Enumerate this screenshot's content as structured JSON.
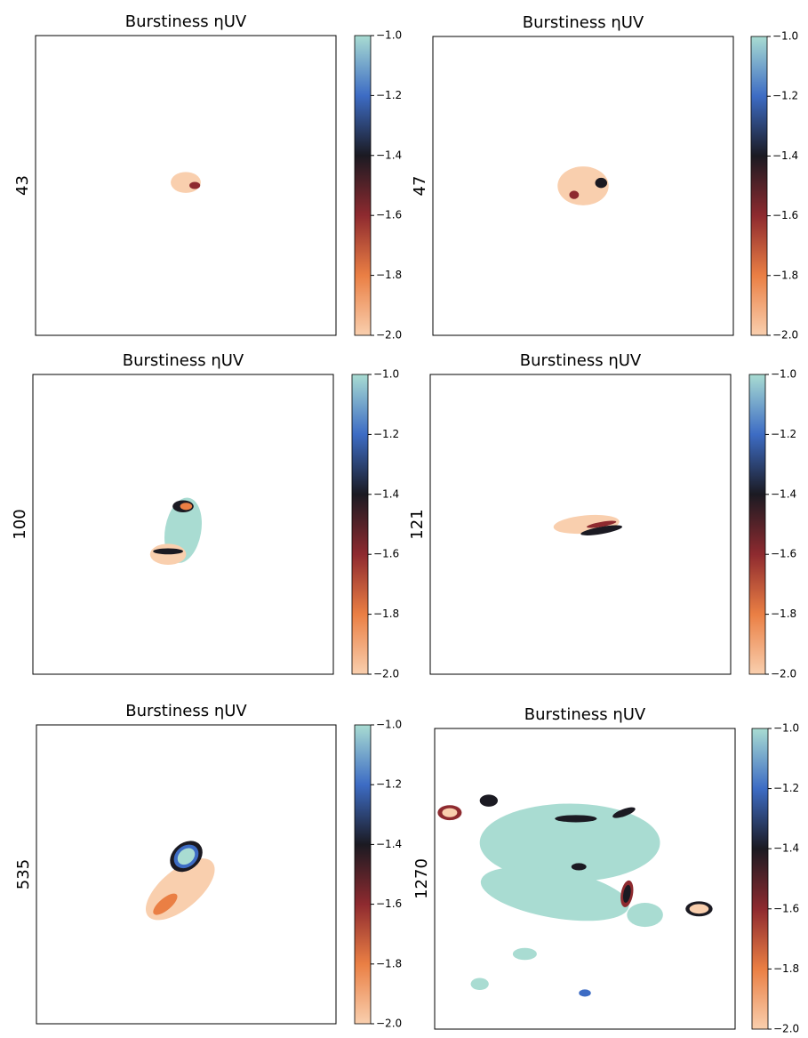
{
  "chart_data": [
    {
      "type": "heatmap",
      "title": "Burstiness ηUV",
      "ylabel": "43",
      "clim": [
        -2.0,
        -1.0
      ],
      "cticks": [
        {
          "value": -1.0,
          "label": "−1.0"
        },
        {
          "value": -1.2,
          "label": "−1.2"
        },
        {
          "value": -1.4,
          "label": "−1.4"
        },
        {
          "value": -1.6,
          "label": "−1.6"
        },
        {
          "value": -1.8,
          "label": "−1.8"
        },
        {
          "value": -2.0,
          "label": "−2.0"
        }
      ],
      "colormap": [
        "#f9cfae",
        "#ea7f44",
        "#8e2a2f",
        "#1b1a22",
        "#3d6cc4",
        "#a9dcd2"
      ]
    },
    {
      "type": "heatmap",
      "title": "Burstiness ηUV",
      "ylabel": "47",
      "clim": [
        -2.0,
        -1.0
      ],
      "cticks": [
        {
          "value": -1.0,
          "label": "−1.0"
        },
        {
          "value": -1.2,
          "label": "−1.2"
        },
        {
          "value": -1.4,
          "label": "−1.4"
        },
        {
          "value": -1.6,
          "label": "−1.6"
        },
        {
          "value": -1.8,
          "label": "−1.8"
        },
        {
          "value": -2.0,
          "label": "−2.0"
        }
      ],
      "colormap": [
        "#f9cfae",
        "#ea7f44",
        "#8e2a2f",
        "#1b1a22",
        "#3d6cc4",
        "#a9dcd2"
      ]
    },
    {
      "type": "heatmap",
      "title": "Burstiness ηUV",
      "ylabel": "100",
      "clim": [
        -2.0,
        -1.0
      ],
      "cticks": [
        {
          "value": -1.0,
          "label": "−1.0"
        },
        {
          "value": -1.2,
          "label": "−1.2"
        },
        {
          "value": -1.4,
          "label": "−1.4"
        },
        {
          "value": -1.6,
          "label": "−1.6"
        },
        {
          "value": -1.8,
          "label": "−1.8"
        },
        {
          "value": -2.0,
          "label": "−2.0"
        }
      ],
      "colormap": [
        "#f9cfae",
        "#ea7f44",
        "#8e2a2f",
        "#1b1a22",
        "#3d6cc4",
        "#a9dcd2"
      ]
    },
    {
      "type": "heatmap",
      "title": "Burstiness ηUV",
      "ylabel": "121",
      "clim": [
        -2.0,
        -1.0
      ],
      "cticks": [
        {
          "value": -1.0,
          "label": "−1.0"
        },
        {
          "value": -1.2,
          "label": "−1.2"
        },
        {
          "value": -1.4,
          "label": "−1.4"
        },
        {
          "value": -1.6,
          "label": "−1.6"
        },
        {
          "value": -1.8,
          "label": "−1.8"
        },
        {
          "value": -2.0,
          "label": "−2.0"
        }
      ],
      "colormap": [
        "#f9cfae",
        "#ea7f44",
        "#8e2a2f",
        "#1b1a22",
        "#3d6cc4",
        "#a9dcd2"
      ]
    },
    {
      "type": "heatmap",
      "title": "Burstiness ηUV",
      "ylabel": "535",
      "clim": [
        -2.0,
        -1.0
      ],
      "cticks": [
        {
          "value": -1.0,
          "label": "−1.0"
        },
        {
          "value": -1.2,
          "label": "−1.2"
        },
        {
          "value": -1.4,
          "label": "−1.4"
        },
        {
          "value": -1.6,
          "label": "−1.6"
        },
        {
          "value": -1.8,
          "label": "−1.8"
        },
        {
          "value": -2.0,
          "label": "−2.0"
        }
      ],
      "colormap": [
        "#f9cfae",
        "#ea7f44",
        "#8e2a2f",
        "#1b1a22",
        "#3d6cc4",
        "#a9dcd2"
      ]
    },
    {
      "type": "heatmap",
      "title": "Burstiness ηUV",
      "ylabel": "1270",
      "clim": [
        -2.0,
        -1.0
      ],
      "cticks": [
        {
          "value": -1.0,
          "label": "−1.0"
        },
        {
          "value": -1.2,
          "label": "−1.2"
        },
        {
          "value": -1.4,
          "label": "−1.4"
        },
        {
          "value": -1.6,
          "label": "−1.6"
        },
        {
          "value": -1.8,
          "label": "−1.8"
        },
        {
          "value": -2.0,
          "label": "−2.0"
        }
      ],
      "colormap": [
        "#f9cfae",
        "#ea7f44",
        "#8e2a2f",
        "#1b1a22",
        "#3d6cc4",
        "#a9dcd2"
      ]
    }
  ]
}
